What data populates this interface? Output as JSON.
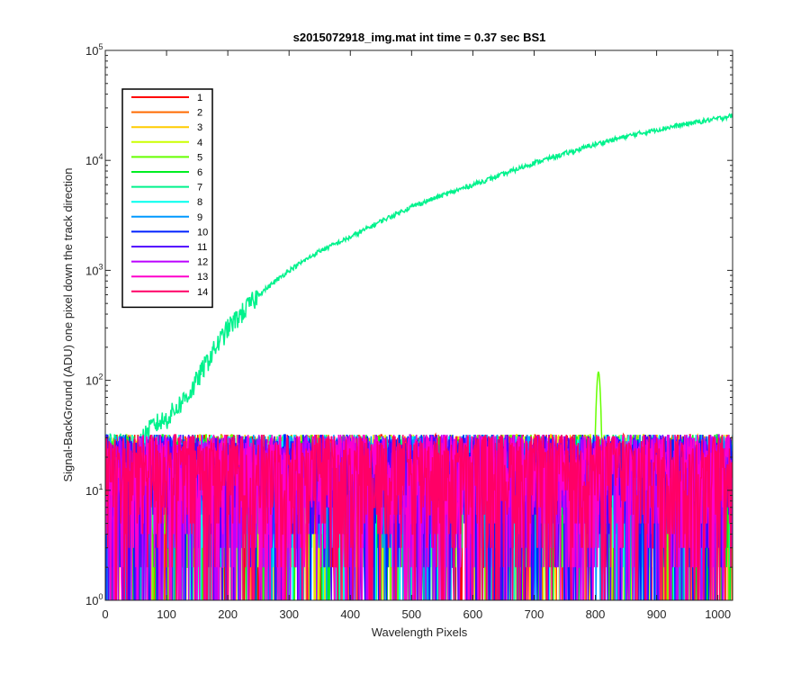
{
  "chart_data": {
    "type": "line",
    "title": "s2015072918_img.mat int time = 0.37 sec   BS1",
    "xlabel": "Wavelength Pixels",
    "ylabel": "Signal-BackGround (ADU) one pixel down the track direction",
    "xlim": [
      0,
      1024
    ],
    "ylim": [
      1,
      100000
    ],
    "yscale": "log",
    "xticks": [
      0,
      100,
      200,
      300,
      400,
      500,
      600,
      700,
      800,
      900,
      1000
    ],
    "yticks": [
      {
        "value": 1,
        "base": "10",
        "exp": "0"
      },
      {
        "value": 10,
        "base": "10",
        "exp": "1"
      },
      {
        "value": 100,
        "base": "10",
        "exp": "2"
      },
      {
        "value": 1000,
        "base": "10",
        "exp": "3"
      },
      {
        "value": 10000,
        "base": "10",
        "exp": "4"
      },
      {
        "value": 100000,
        "base": "10",
        "exp": "5"
      }
    ],
    "grid": false,
    "legend_position": "top-left",
    "series": [
      {
        "name": "1",
        "color": "#ff0000",
        "kind": "noise"
      },
      {
        "name": "2",
        "color": "#ff6a00",
        "kind": "noise"
      },
      {
        "name": "3",
        "color": "#ffcc00",
        "kind": "noise"
      },
      {
        "name": "4",
        "color": "#ccff00",
        "kind": "noise"
      },
      {
        "name": "5",
        "color": "#66ff00",
        "kind": "noise",
        "peak": {
          "x": 805,
          "y": 120
        }
      },
      {
        "name": "6",
        "color": "#00ee22",
        "kind": "noise"
      },
      {
        "name": "7",
        "color": "#00f28c",
        "kind": "signal",
        "x": [
          60,
          80,
          100,
          120,
          140,
          160,
          180,
          200,
          250,
          300,
          350,
          400,
          450,
          500,
          550,
          600,
          650,
          700,
          750,
          800,
          850,
          900,
          950,
          1000,
          1024
        ],
        "y": [
          30,
          40,
          45,
          60,
          80,
          130,
          200,
          300,
          600,
          1000,
          1500,
          2000,
          2800,
          3800,
          4800,
          6000,
          7500,
          9500,
          11500,
          14000,
          16500,
          19000,
          21500,
          24000,
          25500
        ]
      },
      {
        "name": "8",
        "color": "#00ffee",
        "kind": "noise"
      },
      {
        "name": "9",
        "color": "#0099ff",
        "kind": "noise"
      },
      {
        "name": "10",
        "color": "#0022ff",
        "kind": "noise"
      },
      {
        "name": "11",
        "color": "#5500ff",
        "kind": "noise"
      },
      {
        "name": "12",
        "color": "#bb00ff",
        "kind": "noise"
      },
      {
        "name": "13",
        "color": "#ff00cc",
        "kind": "noise"
      },
      {
        "name": "14",
        "color": "#ff0066",
        "kind": "noise"
      }
    ]
  }
}
